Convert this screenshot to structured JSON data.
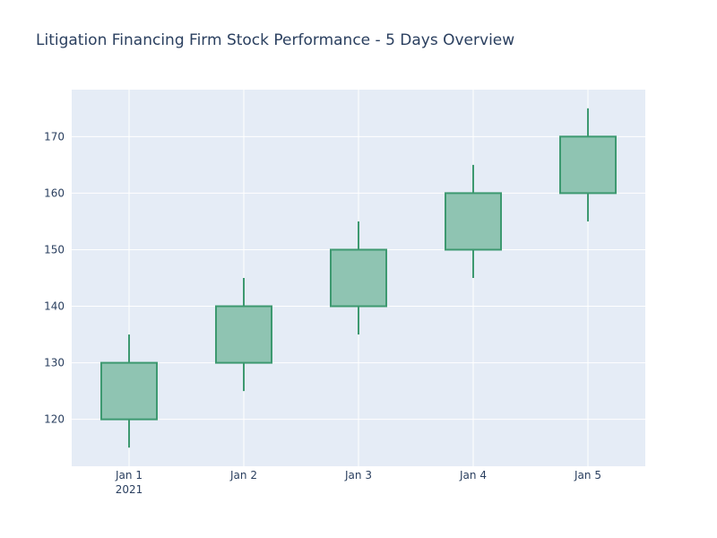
{
  "chart_data": {
    "type": "candlestick",
    "title": "Litigation Financing Firm Stock Performance - 5 Days Overview",
    "x_tick_labels": [
      "Jan 1",
      "Jan 2",
      "Jan 3",
      "Jan 4",
      "Jan 5"
    ],
    "x_year_label": "2021",
    "x": [
      "2021-01-01",
      "2021-01-02",
      "2021-01-03",
      "2021-01-04",
      "2021-01-05"
    ],
    "open": [
      120,
      130,
      140,
      150,
      160
    ],
    "high": [
      135,
      145,
      155,
      165,
      175
    ],
    "low": [
      115,
      125,
      135,
      145,
      155
    ],
    "close": [
      130,
      140,
      150,
      160,
      170
    ],
    "y_ticks": [
      120,
      130,
      140,
      150,
      160,
      170
    ],
    "ylim": [
      111.7,
      178.3
    ],
    "grid": true,
    "colors": {
      "increasing_line": "#3d9970",
      "increasing_fill": "#8fc4b2",
      "plot_bg": "#e5ecf6",
      "grid": "#ffffff",
      "text": "#2a3f5f"
    }
  }
}
